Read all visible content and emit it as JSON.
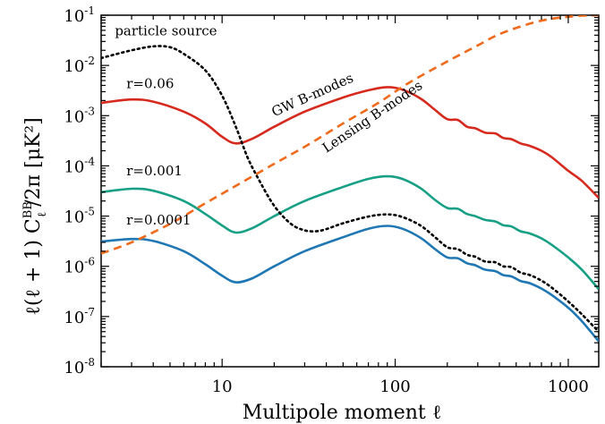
{
  "chart_data": {
    "type": "line",
    "title": "",
    "xlabel": "Multipole moment ℓ",
    "ylabel": "ℓ(ℓ + 1) CℓBB/2π [μK²]",
    "ylabel_parts": {
      "main": "ℓ(ℓ + 1) C",
      "sup": "BB",
      "sub": "ℓ",
      "rest": "/2π",
      "bracket": "[μK²]"
    },
    "xscale": "log",
    "yscale": "log",
    "xlim": [
      2,
      1500
    ],
    "ylim": [
      1e-08,
      0.1
    ],
    "grid": false,
    "legend": "none",
    "x_ticks": [
      10,
      100,
      1000
    ],
    "x_tick_labels": [
      "10",
      "100",
      "1000"
    ],
    "y_ticks": [
      1e-08,
      1e-07,
      1e-06,
      1e-05,
      0.0001,
      0.001,
      0.01,
      0.1
    ],
    "y_tick_labels": [
      {
        "base": "10",
        "exp": "-8"
      },
      {
        "base": "10",
        "exp": "-7"
      },
      {
        "base": "10",
        "exp": "-6"
      },
      {
        "base": "10",
        "exp": "-5"
      },
      {
        "base": "10",
        "exp": "-4"
      },
      {
        "base": "10",
        "exp": "-3"
      },
      {
        "base": "10",
        "exp": "-2"
      },
      {
        "base": "10",
        "exp": "-1"
      }
    ],
    "series": [
      {
        "label_text": "r=0.06",
        "color": "#d62a1e",
        "style": "solid",
        "points": [
          [
            2,
            0.0018
          ],
          [
            3,
            0.0021
          ],
          [
            4,
            0.0019
          ],
          [
            6,
            0.0012
          ],
          [
            8,
            0.0007
          ],
          [
            10,
            0.00038
          ],
          [
            12,
            0.00028
          ],
          [
            15,
            0.00035
          ],
          [
            20,
            0.0006
          ],
          [
            30,
            0.0012
          ],
          [
            50,
            0.0023
          ],
          [
            70,
            0.0032
          ],
          [
            90,
            0.0037
          ],
          [
            110,
            0.0033
          ],
          [
            140,
            0.0022
          ],
          [
            170,
            0.0013
          ],
          [
            200,
            0.00085
          ],
          [
            230,
            0.00082
          ],
          [
            260,
            0.0006
          ],
          [
            290,
            0.00056
          ],
          [
            330,
            0.00046
          ],
          [
            380,
            0.00044
          ],
          [
            420,
            0.00036
          ],
          [
            470,
            0.00034
          ],
          [
            530,
            0.00028
          ],
          [
            600,
            0.00025
          ],
          [
            700,
            0.0002
          ],
          [
            800,
            0.00015
          ],
          [
            1000,
            8e-05
          ],
          [
            1200,
            5e-05
          ],
          [
            1500,
            2.3e-05
          ]
        ]
      },
      {
        "label_text": "r=0.001",
        "color": "#17a085",
        "style": "solid",
        "points": [
          [
            2,
            3e-05
          ],
          [
            3,
            3.5e-05
          ],
          [
            4,
            3.2e-05
          ],
          [
            6,
            2e-05
          ],
          [
            8,
            1.1e-05
          ],
          [
            10,
            6.5e-06
          ],
          [
            12,
            4.7e-06
          ],
          [
            15,
            5.8e-06
          ],
          [
            20,
            1e-05
          ],
          [
            30,
            2e-05
          ],
          [
            50,
            3.8e-05
          ],
          [
            70,
            5.5e-05
          ],
          [
            90,
            6.2e-05
          ],
          [
            110,
            5.5e-05
          ],
          [
            140,
            3.6e-05
          ],
          [
            170,
            2.1e-05
          ],
          [
            200,
            1.45e-05
          ],
          [
            230,
            1.4e-05
          ],
          [
            260,
            1.1e-05
          ],
          [
            290,
            1e-05
          ],
          [
            330,
            8.4e-06
          ],
          [
            380,
            7.8e-06
          ],
          [
            420,
            6.6e-06
          ],
          [
            470,
            6.2e-06
          ],
          [
            530,
            5e-06
          ],
          [
            600,
            4.5e-06
          ],
          [
            700,
            3.6e-06
          ],
          [
            800,
            2.7e-06
          ],
          [
            1000,
            1.5e-06
          ],
          [
            1200,
            8.5e-07
          ],
          [
            1500,
            3.5e-07
          ]
        ]
      },
      {
        "label_text": "r=0.0001",
        "color": "#1f77b4",
        "style": "solid",
        "points": [
          [
            2,
            3.1e-06
          ],
          [
            3,
            3.5e-06
          ],
          [
            4,
            3.2e-06
          ],
          [
            6,
            2e-06
          ],
          [
            8,
            1.1e-06
          ],
          [
            10,
            6.5e-07
          ],
          [
            12,
            4.8e-07
          ],
          [
            15,
            5.8e-07
          ],
          [
            20,
            1e-06
          ],
          [
            30,
            2e-06
          ],
          [
            50,
            3.8e-06
          ],
          [
            70,
            5.6e-06
          ],
          [
            90,
            6.4e-06
          ],
          [
            110,
            5.6e-06
          ],
          [
            140,
            3.7e-06
          ],
          [
            170,
            2.2e-06
          ],
          [
            200,
            1.5e-06
          ],
          [
            230,
            1.45e-06
          ],
          [
            260,
            1.15e-06
          ],
          [
            290,
            1.05e-06
          ],
          [
            330,
            8.6e-07
          ],
          [
            380,
            8e-07
          ],
          [
            420,
            6.7e-07
          ],
          [
            470,
            6.3e-07
          ],
          [
            530,
            5.1e-07
          ],
          [
            600,
            4.6e-07
          ],
          [
            700,
            3.6e-07
          ],
          [
            800,
            2.7e-07
          ],
          [
            1000,
            1.5e-07
          ],
          [
            1200,
            8e-08
          ],
          [
            1500,
            3.2e-08
          ]
        ]
      },
      {
        "label_text": "particle source",
        "color": "#000000",
        "style": "dotted",
        "points": [
          [
            2,
            0.014
          ],
          [
            3,
            0.02
          ],
          [
            4,
            0.024
          ],
          [
            5,
            0.023
          ],
          [
            6,
            0.017
          ],
          [
            8,
            0.008
          ],
          [
            10,
            0.0025
          ],
          [
            12,
            0.0006
          ],
          [
            14,
            0.00015
          ],
          [
            16,
            6e-05
          ],
          [
            20,
            1.6e-05
          ],
          [
            25,
            7e-06
          ],
          [
            30,
            5.2e-06
          ],
          [
            35,
            5e-06
          ],
          [
            40,
            5.5e-06
          ],
          [
            50,
            7.2e-06
          ],
          [
            70,
            9.8e-06
          ],
          [
            90,
            1.08e-05
          ],
          [
            110,
            9.6e-06
          ],
          [
            140,
            6.5e-06
          ],
          [
            170,
            3.8e-06
          ],
          [
            200,
            2.4e-06
          ],
          [
            230,
            2.2e-06
          ],
          [
            260,
            1.7e-06
          ],
          [
            290,
            1.55e-06
          ],
          [
            330,
            1.25e-06
          ],
          [
            380,
            1.2e-06
          ],
          [
            420,
            1e-06
          ],
          [
            470,
            9.6e-07
          ],
          [
            530,
            7.5e-07
          ],
          [
            600,
            6.7e-07
          ],
          [
            700,
            5.2e-07
          ],
          [
            800,
            3.8e-07
          ],
          [
            1000,
            2e-07
          ],
          [
            1200,
            1.1e-07
          ],
          [
            1500,
            5e-08
          ]
        ]
      },
      {
        "label_text": "Lensing B-modes",
        "color": "#f06a1c",
        "style": "dashed",
        "points": [
          [
            2,
            1.8e-06
          ],
          [
            3,
            3e-06
          ],
          [
            5,
            7e-06
          ],
          [
            8,
            1.8e-05
          ],
          [
            12,
            4e-05
          ],
          [
            20,
            0.00011
          ],
          [
            30,
            0.00024
          ],
          [
            50,
            0.0007
          ],
          [
            80,
            0.0018
          ],
          [
            120,
            0.0045
          ],
          [
            200,
            0.012
          ],
          [
            300,
            0.025
          ],
          [
            400,
            0.042
          ],
          [
            600,
            0.068
          ],
          [
            800,
            0.085
          ],
          [
            1000,
            0.093
          ],
          [
            1200,
            0.098
          ],
          [
            1500,
            0.1
          ]
        ]
      }
    ],
    "annotations": [
      {
        "text": "particle source",
        "x": 2.4,
        "y": 0.04,
        "rotation": 0
      },
      {
        "text": "r=0.06",
        "x": 2.8,
        "y": 0.0035,
        "rotation": 0
      },
      {
        "text": "GW B-modes",
        "x": 20,
        "y": 0.00095,
        "rotation": -24
      },
      {
        "text": "Lensing B-modes",
        "x": 40,
        "y": 0.00018,
        "rotation": -34
      },
      {
        "text": "r=0.001",
        "x": 2.8,
        "y": 6.5e-05,
        "rotation": 0
      },
      {
        "text": "r=0.0001",
        "x": 2.8,
        "y": 6.8e-06,
        "rotation": 0
      }
    ]
  }
}
